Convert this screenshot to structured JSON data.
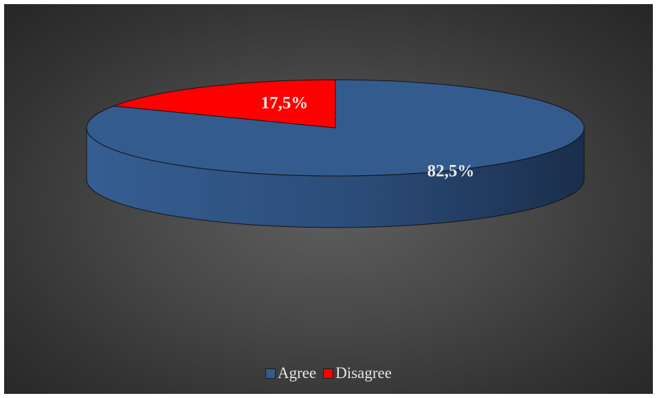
{
  "chart_data": {
    "type": "pie",
    "style": "3d",
    "title": "",
    "slices": [
      {
        "label": "Agree",
        "value": 82.5,
        "value_label": "82,5%",
        "color": "#335b8e"
      },
      {
        "label": "Disagree",
        "value": 17.5,
        "value_label": "17,5%",
        "color": "#ff0000"
      }
    ],
    "legend_position": "bottom",
    "background_color": "#4a4a4a"
  }
}
